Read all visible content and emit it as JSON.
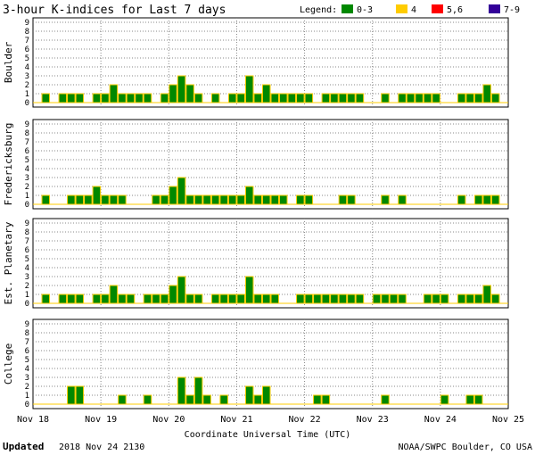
{
  "chart_data": {
    "type": "bar",
    "title": "3-hour K-indices for Last 7 days",
    "legend": {
      "label": "Legend:",
      "placement": "top-right",
      "entries": [
        {
          "label": "0-3",
          "color": "#008800"
        },
        {
          "label": "4",
          "color": "#ffcc00"
        },
        {
          "label": "5,6",
          "color": "#ff0000"
        },
        {
          "label": "7-9",
          "color": "#330099"
        }
      ]
    },
    "bar_outline_color": "#ffcc00",
    "xlabel": "Coordinate Universal Time (UTC)",
    "x_ticks": [
      "Nov 18",
      "Nov 19",
      "Nov 20",
      "Nov 21",
      "Nov 22",
      "Nov 23",
      "Nov 24",
      "Nov 25"
    ],
    "y_ticks": [
      "0",
      "1",
      "2",
      "3",
      "4",
      "5",
      "6",
      "7",
      "8",
      "9"
    ],
    "ylim": [
      0,
      9
    ],
    "grid": true,
    "interval_hours": 3,
    "series": [
      {
        "name": "Boulder",
        "values": [
          0,
          1,
          0,
          1,
          1,
          1,
          0,
          1,
          1,
          2,
          1,
          1,
          1,
          1,
          0,
          1,
          2,
          3,
          2,
          1,
          0,
          1,
          0,
          1,
          1,
          3,
          1,
          2,
          1,
          1,
          1,
          1,
          1,
          0,
          1,
          1,
          1,
          1,
          1,
          0,
          0,
          1,
          0,
          1,
          1,
          1,
          1,
          1,
          0,
          0,
          1,
          1,
          1,
          2,
          1,
          0
        ]
      },
      {
        "name": "Fredericksburg",
        "values": [
          0,
          1,
          0,
          0,
          1,
          1,
          1,
          2,
          1,
          1,
          1,
          0,
          0,
          0,
          1,
          1,
          2,
          3,
          1,
          1,
          1,
          1,
          1,
          1,
          1,
          2,
          1,
          1,
          1,
          1,
          0,
          1,
          1,
          0,
          0,
          0,
          1,
          1,
          0,
          0,
          0,
          1,
          0,
          1,
          0,
          0,
          0,
          0,
          0,
          0,
          1,
          0,
          1,
          1,
          1,
          0
        ]
      },
      {
        "name": "Est. Planetary",
        "values": [
          0,
          1,
          0,
          1,
          1,
          1,
          0,
          1,
          1,
          2,
          1,
          1,
          0,
          1,
          1,
          1,
          2,
          3,
          1,
          1,
          0,
          1,
          1,
          1,
          1,
          3,
          1,
          1,
          1,
          0,
          0,
          1,
          1,
          1,
          1,
          1,
          1,
          1,
          1,
          0,
          1,
          1,
          1,
          1,
          0,
          0,
          1,
          1,
          1,
          0,
          1,
          1,
          1,
          2,
          1,
          0
        ]
      },
      {
        "name": "College",
        "values": [
          0,
          0,
          0,
          0,
          2,
          2,
          0,
          0,
          0,
          0,
          1,
          0,
          0,
          1,
          0,
          0,
          0,
          3,
          1,
          3,
          1,
          0,
          1,
          0,
          0,
          2,
          1,
          2,
          0,
          0,
          0,
          0,
          0,
          1,
          1,
          0,
          0,
          0,
          0,
          0,
          0,
          1,
          0,
          0,
          0,
          0,
          0,
          0,
          1,
          0,
          0,
          1,
          1,
          0,
          0,
          0
        ]
      }
    ]
  },
  "footer": {
    "updated_label": "Updated",
    "updated_value": "2018 Nov 24 2130",
    "source": "NOAA/SWPC Boulder, CO USA"
  }
}
